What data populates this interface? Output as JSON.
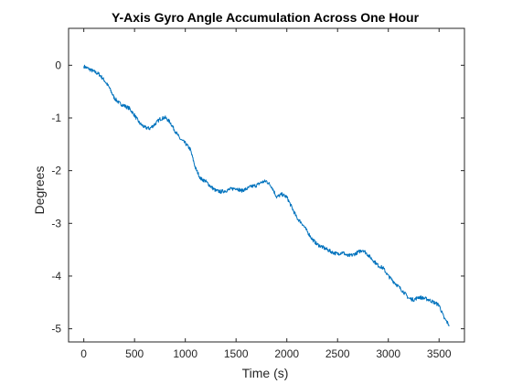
{
  "chart_data": {
    "type": "line",
    "title": "Y-Axis Gyro Angle Accumulation Across One Hour",
    "xlabel": "Time (s)",
    "ylabel": "Degrees",
    "xlim": [
      -150,
      3750
    ],
    "ylim": [
      -5.25,
      0.7
    ],
    "xticks": [
      0,
      500,
      1000,
      1500,
      2000,
      2500,
      3000,
      3500
    ],
    "yticks": [
      0,
      -1,
      -2,
      -3,
      -4,
      -5
    ],
    "grid": false,
    "line_color": "#0072BD",
    "series": [
      {
        "x": [
          0,
          50,
          100,
          150,
          200,
          250,
          300,
          350,
          400,
          450,
          500,
          550,
          600,
          650,
          700,
          750,
          800,
          850,
          900,
          950,
          1000,
          1050,
          1100,
          1150,
          1200,
          1250,
          1300,
          1350,
          1400,
          1450,
          1500,
          1550,
          1600,
          1650,
          1700,
          1750,
          1800,
          1850,
          1900,
          1950,
          2000,
          2050,
          2100,
          2150,
          2200,
          2250,
          2300,
          2350,
          2400,
          2450,
          2500,
          2550,
          2600,
          2650,
          2700,
          2750,
          2800,
          2850,
          2900,
          2950,
          3000,
          3050,
          3100,
          3150,
          3200,
          3250,
          3300,
          3350,
          3400,
          3450,
          3500,
          3550,
          3600
        ],
        "y": [
          -0.02,
          -0.07,
          -0.12,
          -0.17,
          -0.28,
          -0.42,
          -0.62,
          -0.72,
          -0.77,
          -0.82,
          -0.95,
          -1.1,
          -1.18,
          -1.2,
          -1.12,
          -1.02,
          -0.99,
          -1.08,
          -1.25,
          -1.4,
          -1.48,
          -1.6,
          -1.95,
          -2.15,
          -2.2,
          -2.3,
          -2.38,
          -2.4,
          -2.38,
          -2.35,
          -2.33,
          -2.38,
          -2.35,
          -2.3,
          -2.28,
          -2.22,
          -2.2,
          -2.3,
          -2.5,
          -2.45,
          -2.5,
          -2.7,
          -2.9,
          -3.0,
          -3.15,
          -3.3,
          -3.4,
          -3.45,
          -3.5,
          -3.55,
          -3.58,
          -3.55,
          -3.62,
          -3.6,
          -3.55,
          -3.5,
          -3.6,
          -3.7,
          -3.8,
          -3.85,
          -4.0,
          -4.1,
          -4.2,
          -4.3,
          -4.42,
          -4.45,
          -4.4,
          -4.42,
          -4.45,
          -4.5,
          -4.55,
          -4.8,
          -4.93
        ]
      }
    ]
  }
}
